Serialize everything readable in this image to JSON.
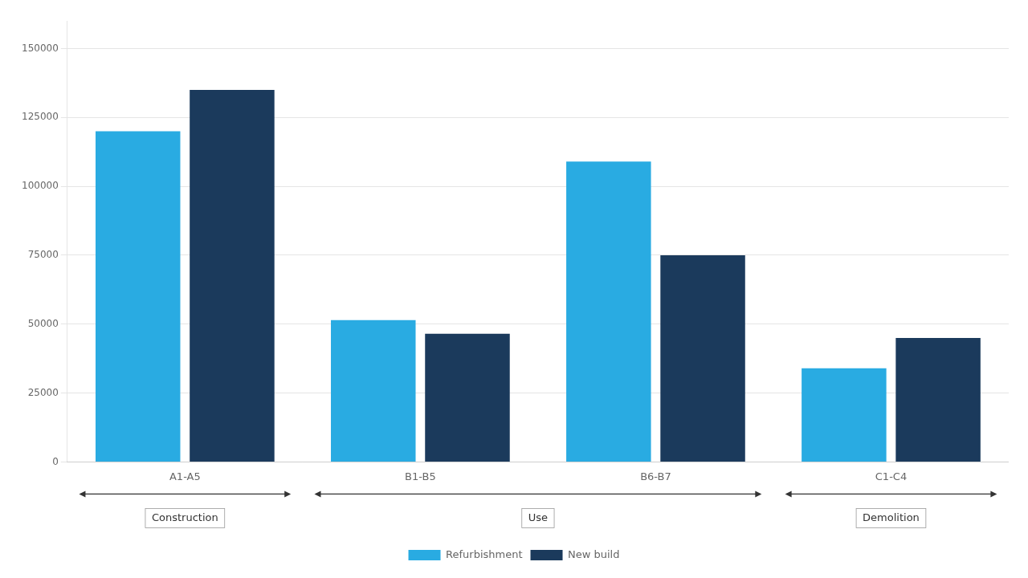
{
  "chart_data": {
    "type": "bar",
    "categories": [
      "A1-A5",
      "B1-B5",
      "B6-B7",
      "C1-C4"
    ],
    "series": [
      {
        "name": "Refurbishment",
        "color": "#29ABE2",
        "values": [
          120000,
          51500,
          109000,
          34000
        ]
      },
      {
        "name": "New build",
        "color": "#1B3A5C",
        "values": [
          135000,
          46500,
          75000,
          45000
        ]
      }
    ],
    "ylim": [
      0,
      160000
    ],
    "yticks": [
      0,
      25000,
      50000,
      75000,
      100000,
      125000,
      150000
    ],
    "grid": true,
    "legend": "bottom",
    "annotations": [
      {
        "text": "Construction",
        "from": "A1-A5",
        "to": "A1-A5"
      },
      {
        "text": "Use",
        "from": "B1-B5",
        "to": "B6-B7"
      },
      {
        "text": "Demolition",
        "from": "C1-C4",
        "to": "C1-C4"
      }
    ]
  }
}
